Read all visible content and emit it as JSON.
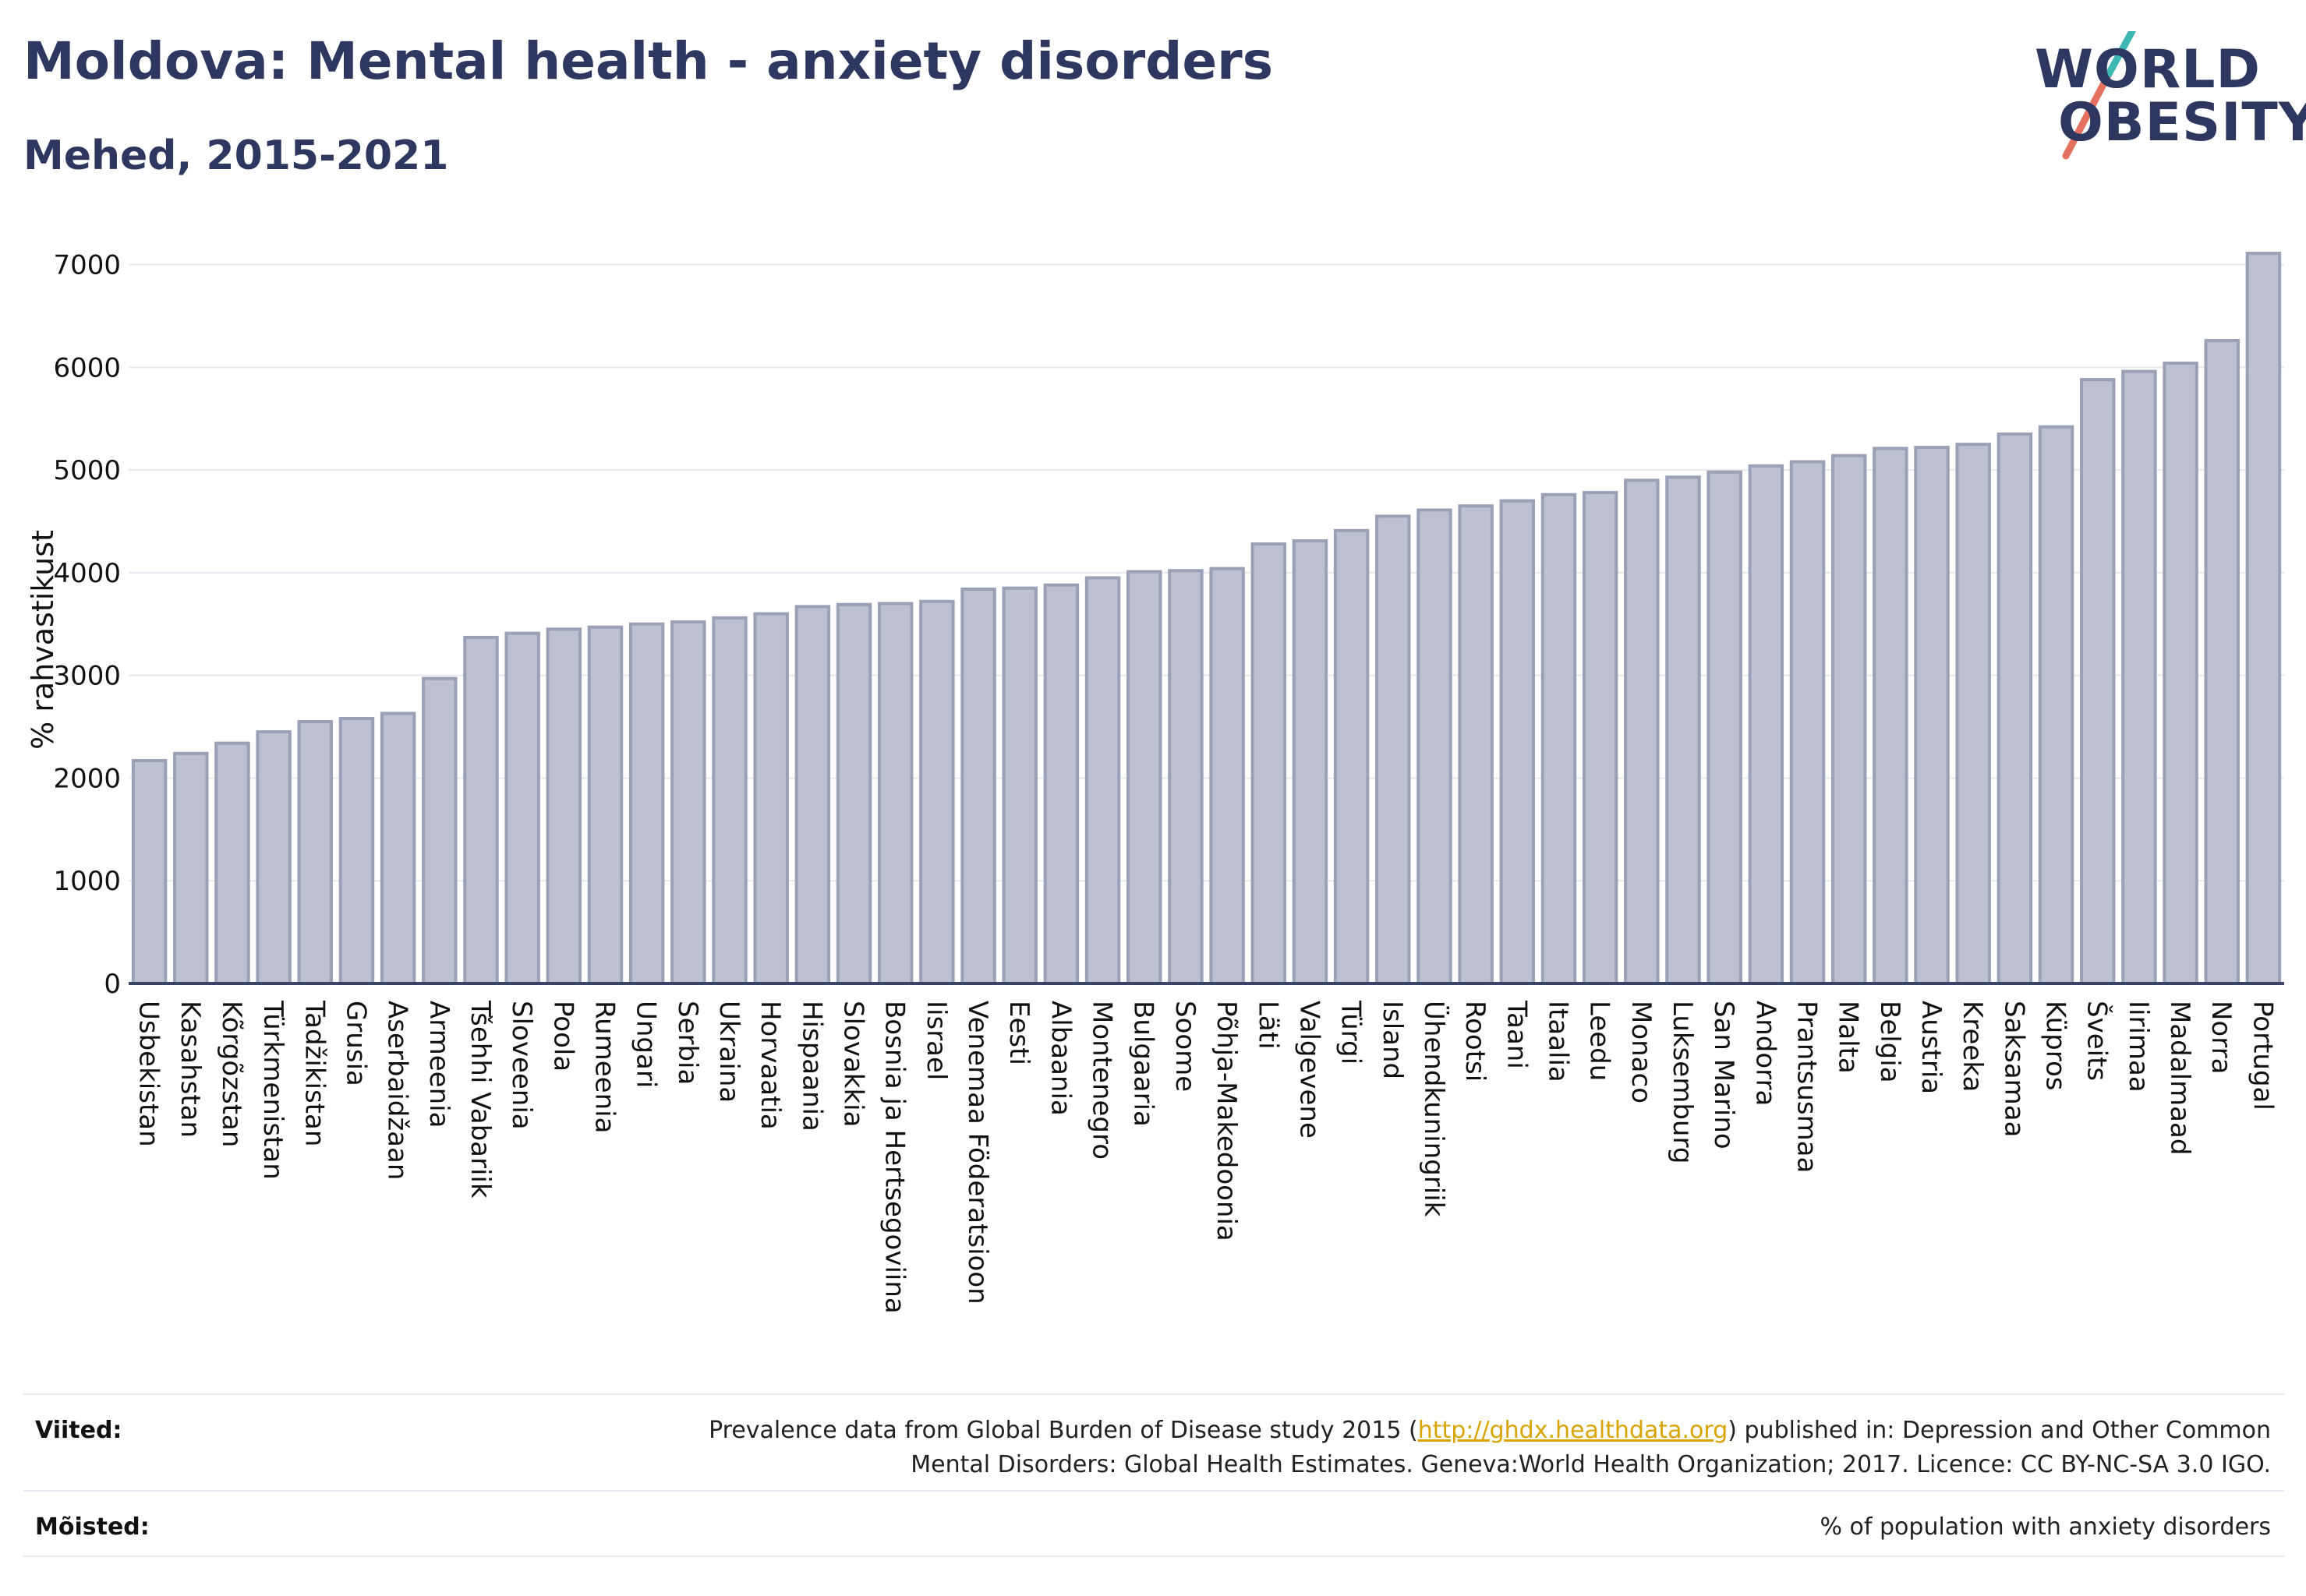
{
  "title": "Moldova: Mental health - anxiety disorders",
  "subtitle": "Mehed, 2015-2021",
  "logo": {
    "line1": "WORLD",
    "line2": "OBESITY"
  },
  "colors": {
    "bar_fill": "#bcc0d0",
    "bar_stroke": "#9aa0b6",
    "title": "#2d3760",
    "link": "#d9a400",
    "grid": "#e6e8ee",
    "axis": "#3a4466"
  },
  "chart_data": {
    "type": "bar",
    "ylabel": "% rahvastikust",
    "xlabel": "",
    "ylim": [
      0,
      7300
    ],
    "yticks": [
      0,
      1000,
      2000,
      3000,
      4000,
      5000,
      6000,
      7000
    ],
    "grid": true,
    "categories": [
      "Usbekistan",
      "Kasahstan",
      "Kõrgõzstan",
      "Türkmenistan",
      "Tadžikistan",
      "Grusia",
      "Aserbaidžaan",
      "Armeenia",
      "Tšehhi Vabariik",
      "Sloveenia",
      "Poola",
      "Rumeenia",
      "Ungari",
      "Serbia",
      "Ukraina",
      "Horvaatia",
      "Hispaania",
      "Slovakkia",
      "Bosnia ja Hertsegoviina",
      "Iisrael",
      "Venemaa Föderatsioon",
      "Eesti",
      "Albaania",
      "Montenegro",
      "Bulgaaria",
      "Soome",
      "Põhja-Makedoonia",
      "Läti",
      "Valgevene",
      "Türgi",
      "Island",
      "Ühendkuningriik",
      "Rootsi",
      "Taani",
      "Itaalia",
      "Leedu",
      "Monaco",
      "Luksemburg",
      "San Marino",
      "Andorra",
      "Prantsusmaa",
      "Malta",
      "Belgia",
      "Austria",
      "Kreeka",
      "Saksamaa",
      "Küpros",
      "Šveits",
      "Iirimaa",
      "Madalmaad",
      "Norra",
      "Portugal"
    ],
    "values": [
      2170,
      2240,
      2340,
      2450,
      2550,
      2580,
      2630,
      2970,
      3370,
      3410,
      3450,
      3470,
      3500,
      3520,
      3560,
      3600,
      3670,
      3690,
      3700,
      3720,
      3840,
      3850,
      3880,
      3950,
      4010,
      4020,
      4040,
      4280,
      4310,
      4410,
      4550,
      4610,
      4650,
      4700,
      4760,
      4780,
      4900,
      4930,
      4980,
      5040,
      5080,
      5140,
      5210,
      5220,
      5250,
      5350,
      5420,
      5880,
      5960,
      6040,
      6260,
      7110
    ]
  },
  "footer": {
    "sources_label": "Viited:",
    "sources_line1_pre": "Prevalence data from Global Burden of Disease study 2015 (",
    "sources_link": "http://ghdx.healthdata.org",
    "sources_line1_post": ") published in: Depression and Other Common",
    "sources_line2": "Mental Disorders: Global Health Estimates. Geneva:World Health Organization; 2017. Licence: CC BY-NC-SA 3.0 IGO.",
    "definitions_label": "Mõisted:",
    "definitions_text": "% of population with anxiety disorders"
  }
}
